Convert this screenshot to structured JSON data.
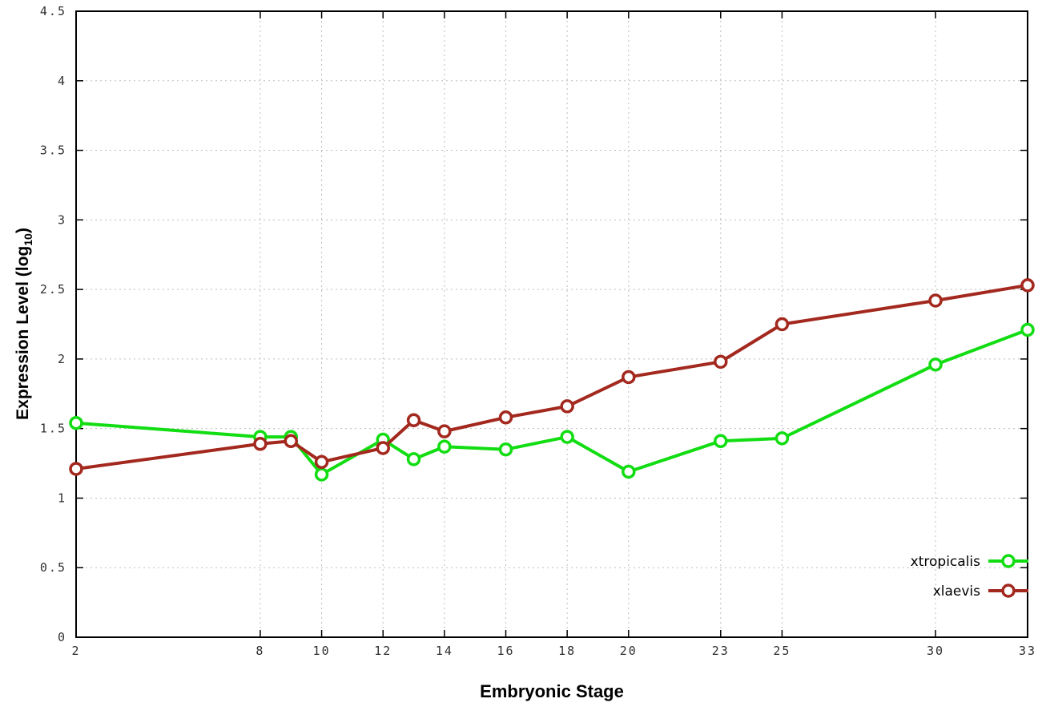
{
  "chart_data": {
    "type": "line",
    "x": [
      2,
      8,
      9,
      10,
      12,
      13,
      14,
      16,
      18,
      20,
      23,
      25,
      30,
      33
    ],
    "series": [
      {
        "name": "xtropicalis",
        "color": "#12dd12",
        "values": [
          1.54,
          1.44,
          1.44,
          1.17,
          1.42,
          1.28,
          1.37,
          1.35,
          1.44,
          1.19,
          1.41,
          1.43,
          1.96,
          2.21
        ]
      },
      {
        "name": "xlaevis",
        "color": "#a3281e",
        "values": [
          1.21,
          1.39,
          1.41,
          1.26,
          1.36,
          1.56,
          1.48,
          1.58,
          1.66,
          1.87,
          1.98,
          2.25,
          2.42,
          2.53
        ]
      }
    ],
    "title": "",
    "xlabel": "Embryonic Stage",
    "ylabel": "Expression Level (log10)",
    "xlim": [
      2,
      33
    ],
    "ylim": [
      0,
      4.5
    ],
    "xticks": [
      2,
      8,
      10,
      12,
      14,
      16,
      18,
      20,
      23,
      25,
      30,
      33
    ],
    "yticks": [
      0,
      0.5,
      1,
      1.5,
      2,
      2.5,
      3,
      3.5,
      4,
      4.5
    ],
    "grid": true,
    "marker": "open-circle",
    "legend_position": "bottom-right"
  },
  "labels": {
    "xlabel": "Embryonic Stage",
    "ylabel_prefix": "Expression Level (log",
    "ylabel_sub": "10",
    "ylabel_suffix": ")"
  }
}
